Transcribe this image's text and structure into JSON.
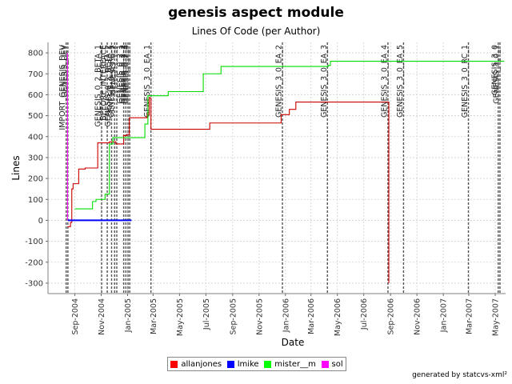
{
  "chart_data": {
    "type": "line",
    "title": "genesis aspect module",
    "subtitle": "Lines Of Code (per Author)",
    "xlabel": "Date",
    "ylabel": "Lines",
    "xlim": [
      "2004-07-01",
      "2007-05-25"
    ],
    "ylim": [
      -350,
      850
    ],
    "yticks": [
      -300,
      -200,
      -100,
      0,
      100,
      200,
      300,
      400,
      500,
      600,
      700,
      800
    ],
    "xticks": [
      {
        "date": "2004-09-01",
        "label": "Sep-2004"
      },
      {
        "date": "2004-11-01",
        "label": "Nov-2004"
      },
      {
        "date": "2005-01-01",
        "label": "Jan-2005"
      },
      {
        "date": "2005-03-01",
        "label": "Mar-2005"
      },
      {
        "date": "2005-05-01",
        "label": "May-2005"
      },
      {
        "date": "2005-07-01",
        "label": "Jul-2005"
      },
      {
        "date": "2005-09-01",
        "label": "Sep-2005"
      },
      {
        "date": "2005-11-01",
        "label": "Nov-2005"
      },
      {
        "date": "2006-01-01",
        "label": "Jan-2006"
      },
      {
        "date": "2006-03-01",
        "label": "Mar-2006"
      },
      {
        "date": "2006-05-01",
        "label": "May-2006"
      },
      {
        "date": "2006-07-01",
        "label": "Jul-2006"
      },
      {
        "date": "2006-09-01",
        "label": "Sep-2006"
      },
      {
        "date": "2006-11-01",
        "label": "Nov-2006"
      },
      {
        "date": "2007-01-01",
        "label": "Jan-2007"
      },
      {
        "date": "2007-03-01",
        "label": "Mar-2007"
      },
      {
        "date": "2007-05-01",
        "label": "May-2007"
      }
    ],
    "grid": true,
    "legend": "bottom",
    "series": [
      {
        "name": "allanjones",
        "color": "#cc0000",
        "step": true,
        "points": [
          [
            "2004-08-15",
            -30
          ],
          [
            "2004-08-22",
            -10
          ],
          [
            "2004-08-25",
            150
          ],
          [
            "2004-08-28",
            175
          ],
          [
            "2004-09-10",
            245
          ],
          [
            "2004-09-25",
            250
          ],
          [
            "2004-10-20",
            250
          ],
          [
            "2004-10-24",
            370
          ],
          [
            "2004-11-20",
            375
          ],
          [
            "2004-12-05",
            365
          ],
          [
            "2004-12-15",
            365
          ],
          [
            "2004-12-23",
            405
          ],
          [
            "2004-12-30",
            410
          ],
          [
            "2005-01-05",
            490
          ],
          [
            "2005-02-15",
            505
          ],
          [
            "2005-02-20",
            585
          ],
          [
            "2005-02-24",
            435
          ],
          [
            "2005-07-10",
            465
          ],
          [
            "2005-12-22",
            505
          ],
          [
            "2006-01-10",
            530
          ],
          [
            "2006-01-25",
            565
          ],
          [
            "2006-08-28",
            565
          ],
          [
            "2006-08-28",
            -300
          ]
        ]
      },
      {
        "name": "lmike",
        "color": "#0000ff",
        "step": true,
        "points": [
          [
            "2004-08-16",
            0
          ],
          [
            "2005-01-10",
            0
          ]
        ]
      },
      {
        "name": "mister__m",
        "color": "#00dd00",
        "step": true,
        "points": [
          [
            "2004-09-01",
            55
          ],
          [
            "2004-10-12",
            90
          ],
          [
            "2004-10-20",
            100
          ],
          [
            "2004-11-10",
            125
          ],
          [
            "2004-11-20",
            365
          ],
          [
            "2004-11-28",
            395
          ],
          [
            "2004-12-10",
            395
          ],
          [
            "2005-02-10",
            460
          ],
          [
            "2005-02-17",
            595
          ],
          [
            "2005-04-05",
            615
          ],
          [
            "2005-06-25",
            700
          ],
          [
            "2005-08-05",
            735
          ],
          [
            "2006-04-10",
            740
          ],
          [
            "2006-04-15",
            760
          ],
          [
            "2007-05-22",
            760
          ]
        ]
      },
      {
        "name": "sol",
        "color": "#ff00ff",
        "step": true,
        "points": [
          [
            "2004-08-15",
            800
          ],
          [
            "2004-08-15",
            0
          ]
        ]
      }
    ],
    "markers": [
      {
        "date": "2004-08-12",
        "label": "IMPORT_GENESIS_DEV"
      },
      {
        "date": "2004-08-16",
        "label": "GENESIS_DEV"
      },
      {
        "date": "2004-11-02",
        "label": "GENESIS_0_2_BETA_1"
      },
      {
        "date": "2004-11-15",
        "label": "BEFORE_INTERFACE"
      },
      {
        "date": "2004-11-25",
        "label": "GENESIS_0_2_BETA_2"
      },
      {
        "date": "2004-12-02",
        "label": "GENESIS_0_2_RC_1"
      },
      {
        "date": "2004-12-07",
        "label": "GENESIS_0_2"
      },
      {
        "date": "2004-12-23",
        "label": "GENESIS_0_2_1"
      },
      {
        "date": "2004-12-28",
        "label": "GENESIS_0_2_2"
      },
      {
        "date": "2005-01-02",
        "label": "GENESIS_0_2_3"
      },
      {
        "date": "2005-01-06",
        "label": "GENESIS_0_2_4"
      },
      {
        "date": "2005-02-24",
        "label": "GENESIS_3_0_EA_1"
      },
      {
        "date": "2005-12-25",
        "label": "GENESIS_3_0_EA_2"
      },
      {
        "date": "2006-04-08",
        "label": "GENESIS_3_0_EA_3"
      },
      {
        "date": "2006-08-26",
        "label": "GENESIS_3_0_EA_4"
      },
      {
        "date": "2006-10-01",
        "label": "GENESIS_3_0_EA_5"
      },
      {
        "date": "2007-02-28",
        "label": "GENESIS_3_0_RC_1"
      },
      {
        "date": "2007-05-08",
        "label": "GENESIS_3_0"
      },
      {
        "date": "2007-05-12",
        "label": "GENESIS_3_0_1"
      }
    ]
  },
  "legend_items": [
    {
      "label": "allanjones",
      "color": "#ff0000"
    },
    {
      "label": "lmike",
      "color": "#0000ff"
    },
    {
      "label": "mister__m",
      "color": "#00ff00"
    },
    {
      "label": "sol",
      "color": "#ff00ff"
    }
  ],
  "credit": "generated by statcvs-xml²"
}
